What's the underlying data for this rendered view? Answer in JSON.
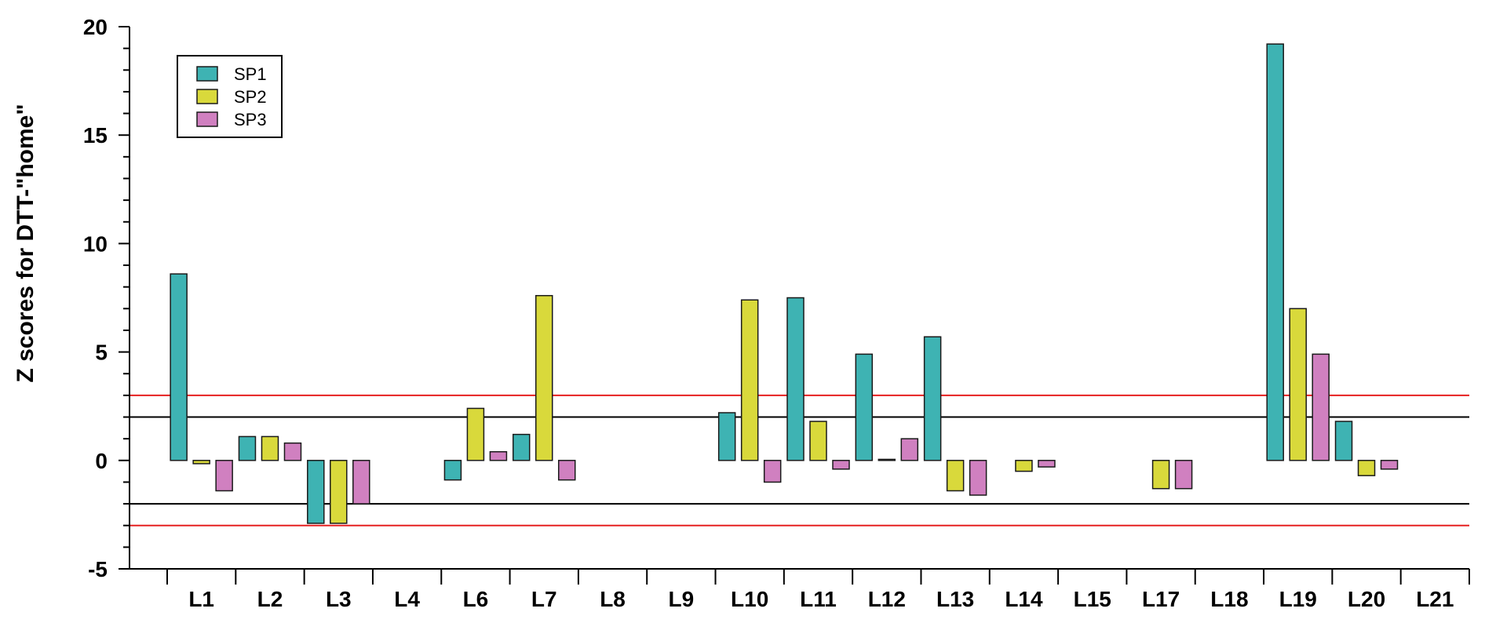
{
  "chart_data": {
    "type": "bar",
    "title": "",
    "xlabel": "",
    "ylabel": "Z scores for DTT-\"home\"",
    "ylim": [
      -5,
      20
    ],
    "yticks": [
      -5,
      0,
      5,
      10,
      15,
      20
    ],
    "grid": false,
    "legend": "top-left",
    "categories": [
      "L1",
      "L2",
      "L3",
      "L4",
      "L6",
      "L7",
      "L8",
      "L9",
      "L10",
      "L11",
      "L12",
      "L13",
      "L14",
      "L15",
      "L17",
      "L18",
      "L19",
      "L20",
      "L21"
    ],
    "series": [
      {
        "name": "SP1",
        "color": "#3eb3b3",
        "values": [
          8.6,
          1.1,
          -2.9,
          0,
          -0.9,
          1.2,
          0,
          0,
          2.2,
          7.5,
          4.9,
          5.7,
          0,
          0,
          0,
          0,
          19.2,
          1.8,
          0
        ]
      },
      {
        "name": "SP2",
        "color": "#d9d93b",
        "values": [
          -0.15,
          1.1,
          -2.9,
          0,
          2.4,
          7.6,
          0,
          0,
          7.4,
          1.8,
          0.05,
          -1.4,
          -0.5,
          0,
          -1.3,
          0,
          7.0,
          -0.7,
          0
        ]
      },
      {
        "name": "SP3",
        "color": "#d080c0",
        "values": [
          -1.4,
          0.8,
          -2.0,
          0,
          0.4,
          -0.9,
          0,
          0,
          -1.0,
          -0.4,
          1.0,
          -1.6,
          -0.3,
          0,
          -1.3,
          0,
          4.9,
          -0.4,
          0
        ]
      }
    ],
    "reference_lines": [
      {
        "y": 3,
        "color": "#e62020"
      },
      {
        "y": 2,
        "color": "#000000"
      },
      {
        "y": -2,
        "color": "#000000"
      },
      {
        "y": -3,
        "color": "#e62020"
      }
    ]
  }
}
